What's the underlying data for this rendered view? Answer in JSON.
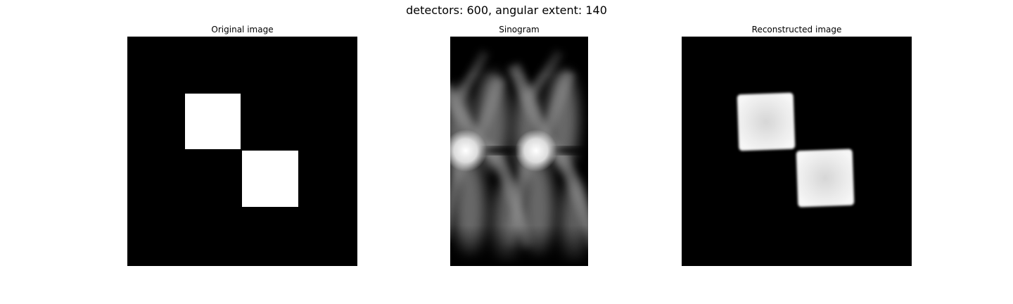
{
  "figure": {
    "title": "detectors: 600, angular extent: 140"
  },
  "panels": [
    {
      "title": "Original image"
    },
    {
      "title": "Sinogram"
    },
    {
      "title": "Reconstructed image"
    }
  ]
}
